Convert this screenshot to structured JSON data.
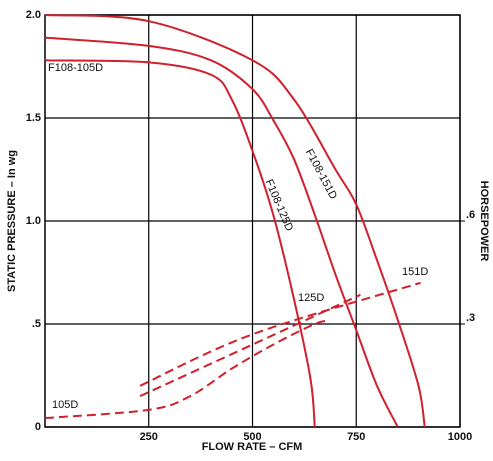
{
  "chart_data": {
    "type": "line",
    "xlabel": "FLOW RATE – CFM",
    "ylabel": "STATIC PRESSURE – In wg",
    "y2label": "HORSEPOWER",
    "xlim": [
      0,
      1000
    ],
    "xticks": [
      250,
      500,
      750,
      1000
    ],
    "ylim": [
      0,
      2
    ],
    "yticks": [
      0,
      {
        "value": 0.5,
        "label": ".5"
      },
      {
        "value": 1,
        "label": "1.0"
      },
      1.5,
      {
        "value": 2,
        "label": "2.0"
      }
    ],
    "y2lim": [
      0,
      1.2
    ],
    "y2ticks": [
      {
        "value": 0.3,
        "label": ".3"
      },
      {
        "value": 0.6,
        "label": ".6"
      }
    ],
    "grid": true,
    "series": [
      {
        "name": "F108-105D",
        "color": "#d0202c",
        "x": [
          0,
          250,
          400,
          450,
          500,
          550,
          600,
          640,
          650
        ],
        "values": [
          1.78,
          1.77,
          1.71,
          1.59,
          1.34,
          1.03,
          0.62,
          0.23,
          0
        ]
      },
      {
        "name": "F108-125D",
        "color": "#d0202c",
        "x": [
          0,
          250,
          400,
          500,
          550,
          600,
          650,
          700,
          750,
          800,
          850
        ],
        "values": [
          1.89,
          1.85,
          1.78,
          1.64,
          1.49,
          1.3,
          1.03,
          0.74,
          0.47,
          0.2,
          0
        ]
      },
      {
        "name": "F108-151D",
        "color": "#d0202c",
        "x": [
          0,
          250,
          500,
          600,
          700,
          750,
          800,
          850,
          900,
          915
        ],
        "values": [
          2,
          1.97,
          1.78,
          1.59,
          1.25,
          1.08,
          0.81,
          0.52,
          0.2,
          0
        ]
      },
      {
        "name": "105D",
        "color": "#d0202c",
        "axis": "y2",
        "x": [
          0,
          250,
          350,
          450,
          550,
          650,
          687
        ],
        "values": [
          0.026,
          0.05,
          0.09,
          0.17,
          0.24,
          0.3,
          0.31
        ]
      },
      {
        "name": "125D",
        "color": "#d0202c",
        "axis": "y2",
        "x": [
          229,
          500,
          760
        ],
        "values": [
          0.09,
          0.24,
          0.385
        ]
      },
      {
        "name": "151D",
        "color": "#d0202c",
        "axis": "y2",
        "x": [
          229,
          500,
          905
        ],
        "values": [
          0.12,
          0.27,
          0.42
        ]
      }
    ]
  }
}
